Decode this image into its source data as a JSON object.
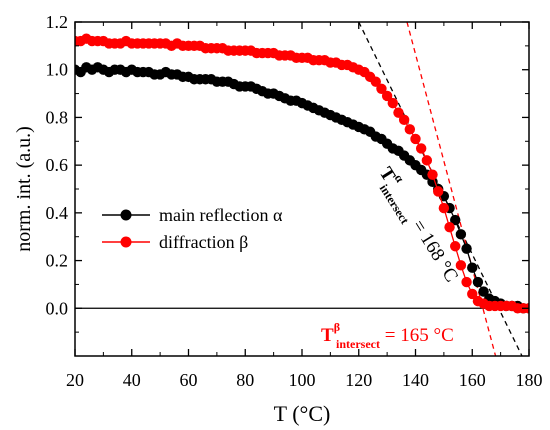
{
  "chart_data": {
    "type": "scatter",
    "title": "",
    "xlabel": "T (°C)",
    "ylabel": "norm. int. (a.u.)",
    "xlim": [
      20,
      180
    ],
    "ylim": [
      -0.2,
      1.2
    ],
    "x_ticks": [
      20,
      40,
      60,
      80,
      100,
      120,
      140,
      160,
      180
    ],
    "x_tick_labels": [
      "20",
      "40",
      "60",
      "80",
      "100",
      "120",
      "140",
      "160",
      "180"
    ],
    "y_ticks": [
      0.0,
      0.2,
      0.4,
      0.6,
      0.8,
      1.0,
      1.2
    ],
    "y_tick_labels": [
      "0.0",
      "0.2",
      "0.4",
      "0.6",
      "0.8",
      "1.0",
      "1.2"
    ],
    "legend_position": "center-left",
    "grid": false,
    "series": [
      {
        "name": "main reflection α",
        "color": "#000000",
        "x": [
          20,
          22,
          24,
          26,
          28,
          30,
          32,
          34,
          36,
          38,
          40,
          42,
          44,
          46,
          48,
          50,
          52,
          54,
          56,
          58,
          60,
          62,
          64,
          66,
          68,
          70,
          72,
          74,
          76,
          78,
          80,
          82,
          84,
          86,
          88,
          90,
          92,
          94,
          96,
          98,
          100,
          102,
          104,
          106,
          108,
          110,
          112,
          114,
          116,
          118,
          120,
          122,
          124,
          126,
          128,
          130,
          132,
          134,
          136,
          138,
          140,
          142,
          144,
          146,
          148,
          150,
          152,
          154,
          156,
          158,
          160,
          162,
          164,
          166,
          168,
          170,
          172,
          174,
          176,
          178,
          180
        ],
        "y": [
          1.0,
          0.99,
          1.01,
          1.0,
          1.01,
          1.0,
          0.99,
          1.0,
          1.0,
          0.99,
          1.0,
          0.99,
          0.99,
          0.99,
          0.98,
          0.98,
          0.99,
          0.98,
          0.98,
          0.97,
          0.97,
          0.96,
          0.96,
          0.96,
          0.96,
          0.95,
          0.95,
          0.95,
          0.94,
          0.93,
          0.93,
          0.93,
          0.92,
          0.91,
          0.9,
          0.9,
          0.89,
          0.88,
          0.87,
          0.87,
          0.86,
          0.85,
          0.84,
          0.83,
          0.82,
          0.81,
          0.8,
          0.79,
          0.78,
          0.77,
          0.76,
          0.75,
          0.74,
          0.72,
          0.71,
          0.69,
          0.67,
          0.66,
          0.64,
          0.62,
          0.6,
          0.58,
          0.56,
          0.53,
          0.5,
          0.47,
          0.42,
          0.37,
          0.31,
          0.25,
          0.17,
          0.11,
          0.07,
          0.04,
          0.03,
          0.02,
          0.01,
          0.01,
          0.01,
          0.0,
          0.0
        ]
      },
      {
        "name": "diffraction β",
        "color": "#ff0000",
        "x": [
          20,
          22,
          24,
          26,
          28,
          30,
          32,
          34,
          36,
          38,
          40,
          42,
          44,
          46,
          48,
          50,
          52,
          54,
          56,
          58,
          60,
          62,
          64,
          66,
          68,
          70,
          72,
          74,
          76,
          78,
          80,
          82,
          84,
          86,
          88,
          90,
          92,
          94,
          96,
          98,
          100,
          102,
          104,
          106,
          108,
          110,
          112,
          114,
          116,
          118,
          120,
          122,
          124,
          126,
          128,
          130,
          132,
          134,
          136,
          138,
          140,
          142,
          144,
          146,
          148,
          150,
          152,
          154,
          156,
          158,
          160,
          162,
          164,
          166,
          168,
          170,
          172,
          174,
          176,
          178,
          180
        ],
        "y": [
          1.12,
          1.12,
          1.13,
          1.12,
          1.12,
          1.12,
          1.11,
          1.11,
          1.11,
          1.12,
          1.11,
          1.11,
          1.11,
          1.11,
          1.11,
          1.11,
          1.11,
          1.1,
          1.11,
          1.1,
          1.1,
          1.1,
          1.1,
          1.09,
          1.09,
          1.09,
          1.09,
          1.08,
          1.08,
          1.08,
          1.08,
          1.08,
          1.07,
          1.07,
          1.07,
          1.07,
          1.06,
          1.06,
          1.06,
          1.05,
          1.05,
          1.05,
          1.04,
          1.04,
          1.04,
          1.03,
          1.03,
          1.02,
          1.02,
          1.01,
          1.0,
          0.99,
          0.97,
          0.95,
          0.92,
          0.89,
          0.86,
          0.82,
          0.79,
          0.75,
          0.71,
          0.67,
          0.62,
          0.56,
          0.49,
          0.42,
          0.34,
          0.26,
          0.18,
          0.11,
          0.06,
          0.03,
          0.02,
          0.01,
          0.01,
          0.01,
          0.01,
          0.01,
          0.0,
          0.0,
          0.0
        ]
      }
    ],
    "fit_lines": [
      {
        "series": "main reflection α",
        "color": "#000000",
        "dash": "dashed",
        "x": [
          120,
          180
        ],
        "y": [
          1.2,
          -0.26
        ]
      },
      {
        "series": "diffraction β",
        "color": "#ff0000",
        "dash": "dashed",
        "x": [
          137,
          170
        ],
        "y": [
          1.2,
          -0.28
        ]
      }
    ],
    "reference_lines": [
      {
        "type": "horizontal",
        "y": 0.0,
        "color": "#000000"
      }
    ],
    "annotations": [
      {
        "id": "alpha",
        "letter": "T",
        "superscript": "α",
        "subscript": "intersect",
        "value_text": " = 168 °C",
        "color": "#000000",
        "x": 130,
        "y": 0.63,
        "rotation": "along fit line"
      },
      {
        "id": "beta",
        "letter": "T",
        "superscript": "β",
        "subscript": "intersect",
        "value_text": " = 165 °C",
        "color": "#ff0000",
        "x": 124,
        "y": -0.13,
        "rotation": "none"
      }
    ]
  }
}
